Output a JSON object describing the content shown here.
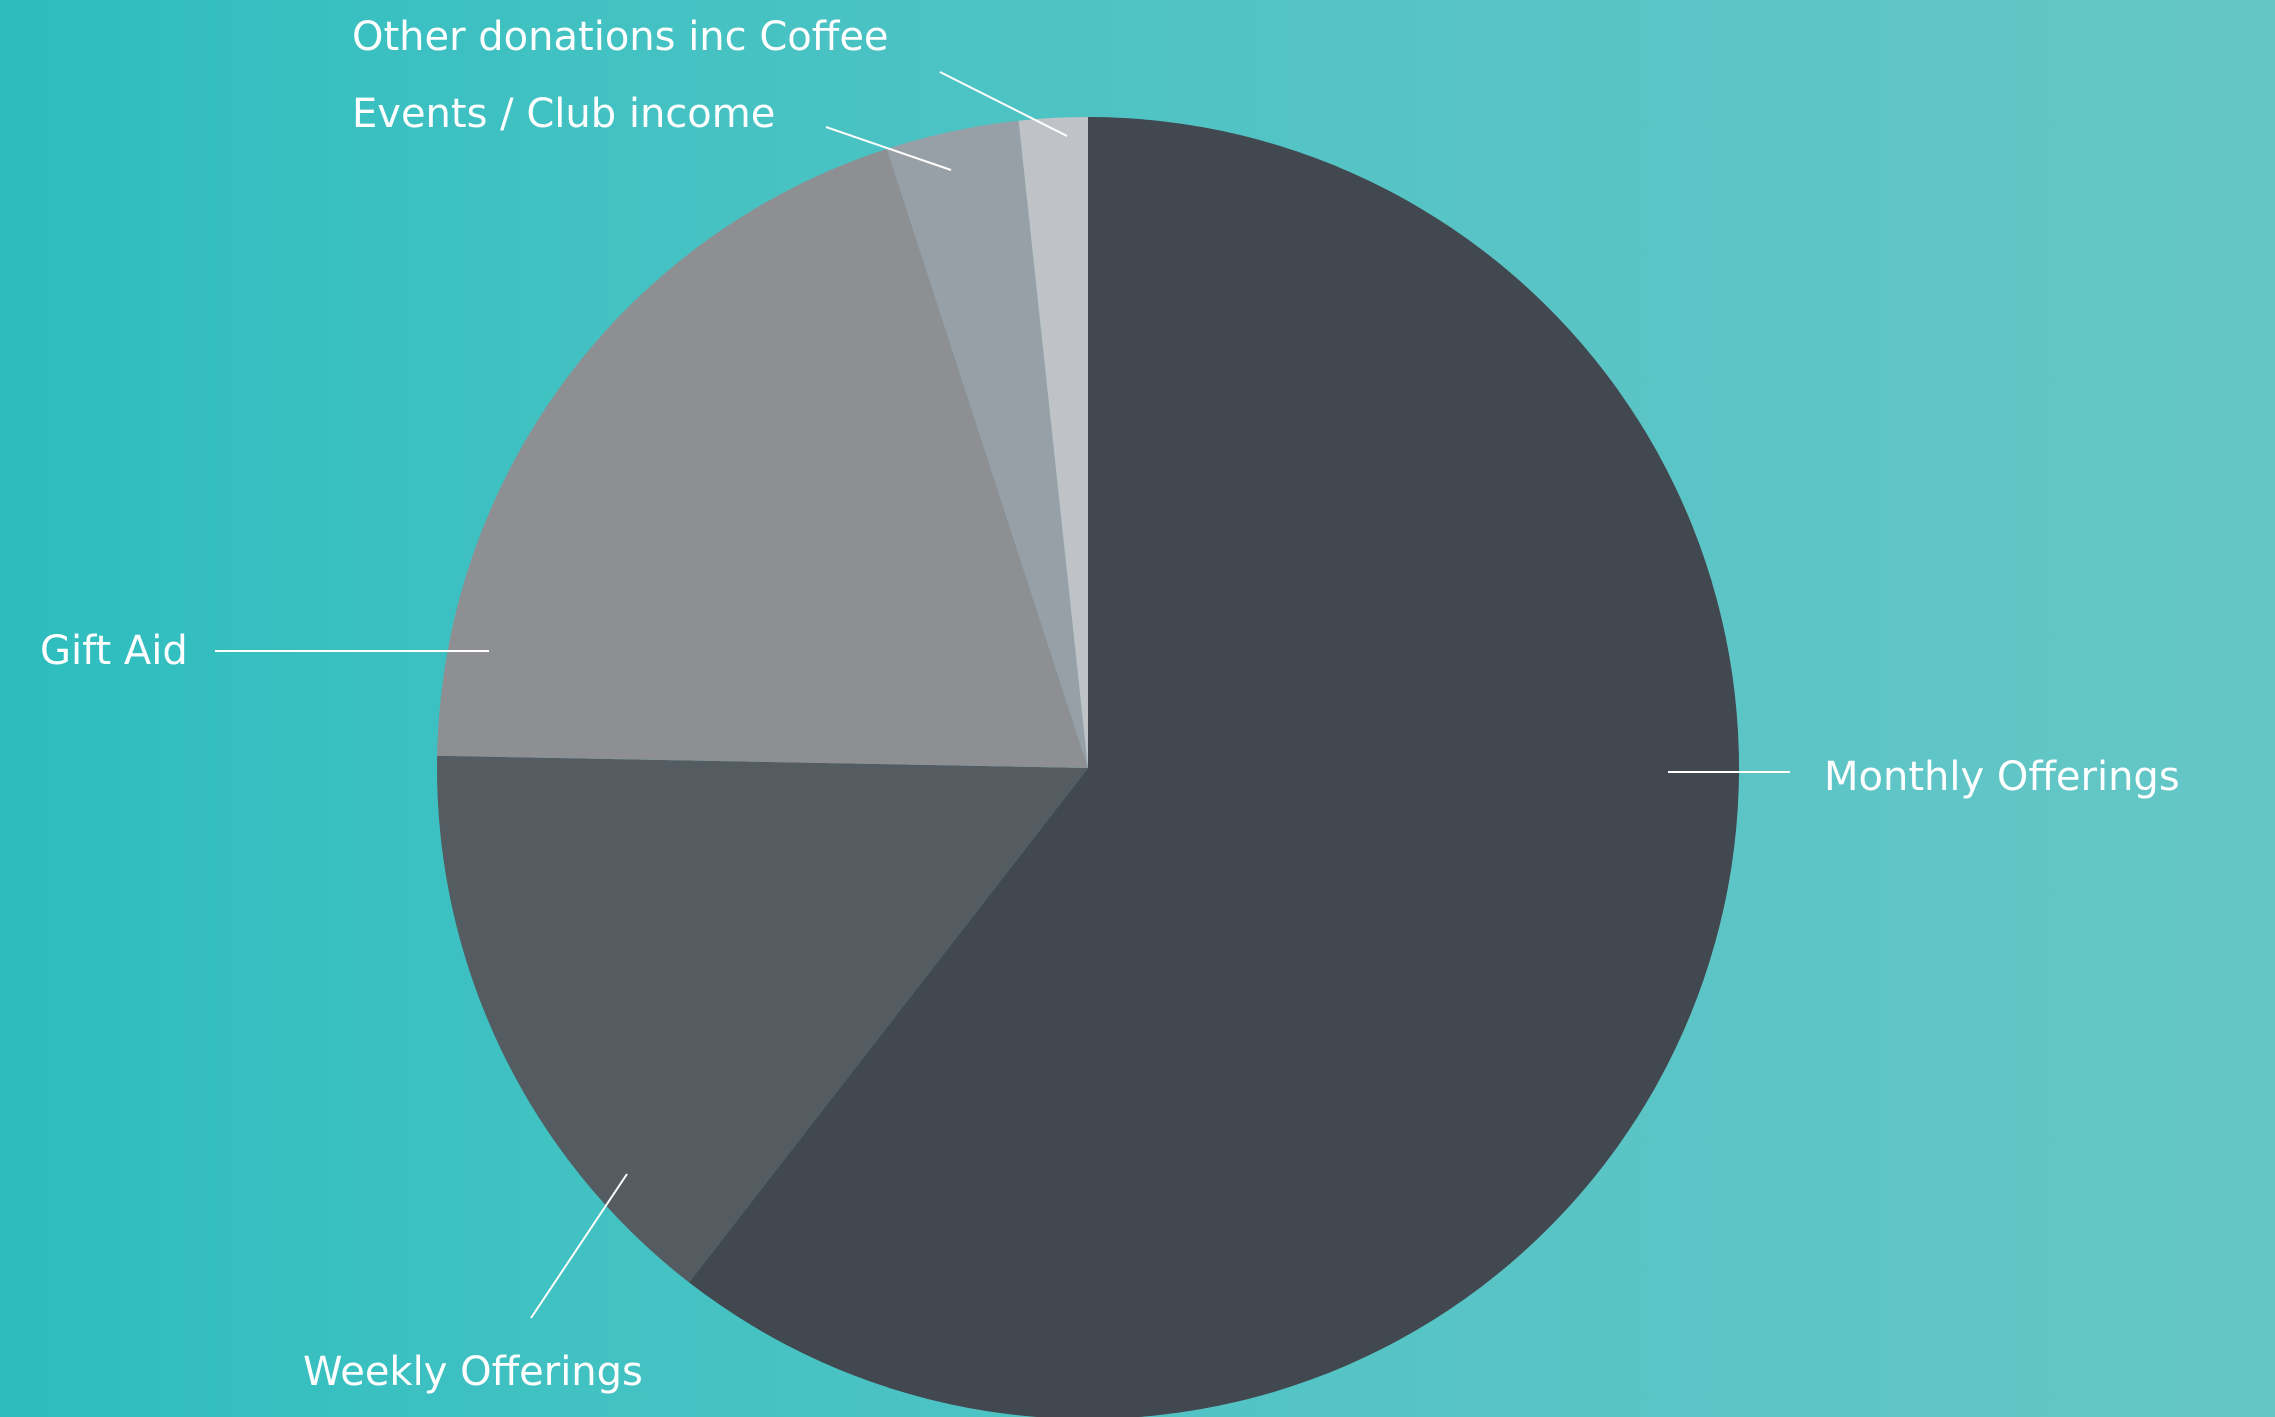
{
  "chart_data": {
    "type": "pie",
    "title": "",
    "start_angle": "12 o'clock",
    "direction": "clockwise",
    "slices": [
      {
        "label": "Monthly Offerings",
        "value": 60.5,
        "color": "#41484f"
      },
      {
        "label": "Weekly Offerings",
        "value": 14.8,
        "color": "#545b61"
      },
      {
        "label": "Gift Aid",
        "value": 19.7,
        "color": "#8e8f92"
      },
      {
        "label": "Events / Club income",
        "value": 3.3,
        "color": "#98a0a7"
      },
      {
        "label": "Other donations inc Coffee",
        "value": 1.7,
        "color": "#bfc3c7"
      }
    ],
    "legend": "none"
  }
}
